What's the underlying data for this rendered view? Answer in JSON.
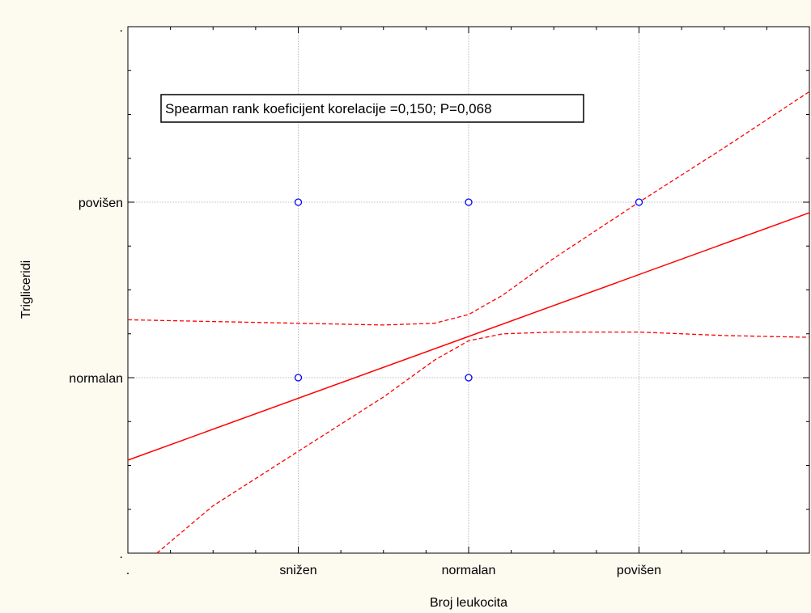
{
  "chart_data": {
    "type": "scatter",
    "xlabel": "Broj leukocita",
    "ylabel": "Trigliceridi",
    "categories_x": [
      ".",
      "snižen",
      "normalan",
      "povišen",
      ""
    ],
    "categories_y": [
      ".",
      "normalan",
      "povišen",
      "."
    ],
    "xlim": [
      0,
      4
    ],
    "ylim": [
      0,
      3
    ],
    "grid": true,
    "annotation": "Spearman rank koeficijent korelacije =0,150; P=0,068",
    "points": [
      {
        "x": 1,
        "y": 2
      },
      {
        "x": 2,
        "y": 2
      },
      {
        "x": 3,
        "y": 2
      },
      {
        "x": 1,
        "y": 1
      },
      {
        "x": 2,
        "y": 1
      }
    ],
    "regression": {
      "x": [
        0,
        4
      ],
      "y": [
        0.53,
        1.94
      ]
    },
    "ci_upper": {
      "x": [
        0,
        0.5,
        1,
        1.5,
        1.8,
        2,
        2.2,
        2.5,
        3,
        3.5,
        4
      ],
      "y": [
        1.33,
        1.32,
        1.31,
        1.3,
        1.31,
        1.36,
        1.47,
        1.68,
        2.0,
        2.31,
        2.63
      ]
    },
    "ci_lower": {
      "x": [
        0.17,
        0.5,
        1,
        1.5,
        1.8,
        2,
        2.2,
        2.5,
        3,
        3.5,
        4
      ],
      "y": [
        0.0,
        0.27,
        0.58,
        0.89,
        1.1,
        1.21,
        1.25,
        1.26,
        1.26,
        1.24,
        1.23
      ]
    },
    "colors": {
      "background": "#fdfaf0",
      "plot_area": "#ffffff",
      "points": "#0000ff",
      "lines": "#ff0000",
      "grid": "#aaaaaa"
    }
  }
}
